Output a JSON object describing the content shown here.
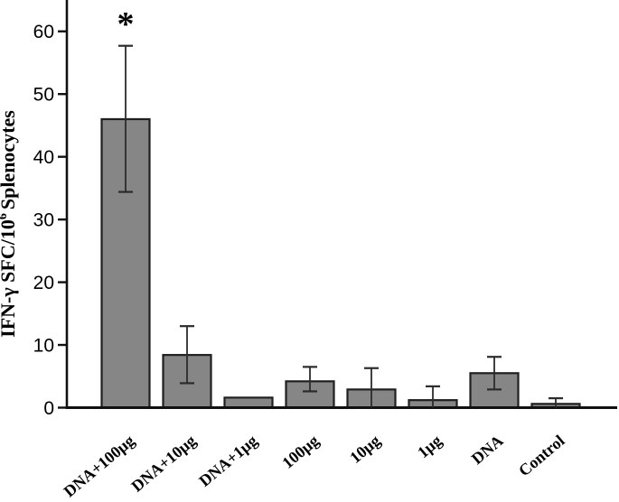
{
  "figure": {
    "kind": "scientific-bar-chart"
  },
  "chart_data": {
    "type": "bar",
    "title": "",
    "xlabel": "",
    "ylabel": "IFN-γ SFC/10⁶ Splenocytes",
    "ylabel_parts": {
      "base": "IFN-γ SFC/10",
      "superscript": "6",
      "rest": "Splenocytes"
    },
    "categories": [
      "DNA+100μg",
      "DNA+10μg",
      "DNA+1μg",
      "100μg",
      "10μg",
      "1μg",
      "DNA",
      "Control"
    ],
    "values": [
      46,
      8.4,
      1.6,
      4.2,
      2.9,
      1.2,
      5.5,
      0.6
    ],
    "errors": [
      {
        "high": 57.7,
        "low": 34.4
      },
      {
        "high": 13.0,
        "low": 3.9
      },
      null,
      {
        "high": 6.5,
        "low": 2.6
      },
      {
        "high": 6.3,
        "low": null
      },
      {
        "high": 3.4,
        "low": null
      },
      {
        "high": 8.1,
        "low": 2.9
      },
      {
        "high": 1.5,
        "low": null
      }
    ],
    "annotations": [
      {
        "text": "*",
        "category_index": 0,
        "value": 62
      }
    ],
    "yticks": [
      0,
      10,
      20,
      30,
      40,
      50,
      60
    ],
    "ylim": [
      0,
      65
    ],
    "grid": false,
    "legend": null,
    "colors": {
      "bar_fill": "#868686",
      "bar_border": "#1f1f1f",
      "error_bar": "#2b2b2b",
      "axis": "#111111",
      "text": "#000000",
      "background": "#ffffff"
    }
  }
}
